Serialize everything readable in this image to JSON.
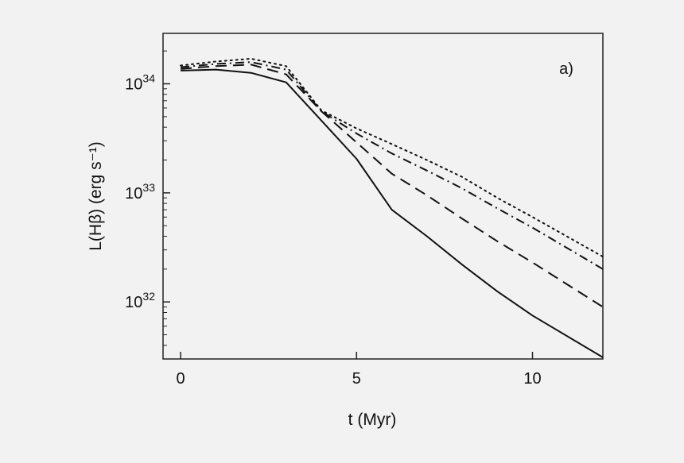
{
  "chart_data": {
    "type": "line",
    "panel_label": "a)",
    "xlabel": "t (Myr)",
    "ylabel": "L(Hβ) (erg s⁻¹)",
    "xlim": [
      -0.5,
      12
    ],
    "ylim": [
      3e+31,
      2.9e+34
    ],
    "y_scale": "log",
    "x_ticks": [
      0,
      5,
      10
    ],
    "x_tick_labels": [
      "0",
      "5",
      "10"
    ],
    "y_ticks": [
      1e+32,
      1e+33,
      1e+34
    ],
    "y_tick_labels": [
      {
        "base": "10",
        "exp": "32"
      },
      {
        "base": "10",
        "exp": "33"
      },
      {
        "base": "10",
        "exp": "34"
      }
    ],
    "grid": false,
    "series": [
      {
        "style": "solid",
        "x": [
          0,
          1,
          2,
          3,
          4,
          5,
          6,
          7,
          8,
          9,
          10,
          12
        ],
        "y": [
          1.32e+34,
          1.35e+34,
          1.26e+34,
          1.03e+34,
          4.6e+33,
          2.05e+33,
          7e+32,
          4e+32,
          2.2e+32,
          1.25e+32,
          7.5e+31,
          3.1e+31
        ]
      },
      {
        "style": "dashed",
        "x": [
          0,
          1,
          2,
          3,
          4,
          5,
          6,
          7,
          8,
          9,
          10,
          12
        ],
        "y": [
          1.37e+34,
          1.45e+34,
          1.5e+34,
          1.22e+34,
          5.6e+33,
          2.9e+33,
          1.5e+33,
          9.5e+32,
          5.8e+32,
          3.6e+32,
          2.3e+32,
          9e+31
        ]
      },
      {
        "style": "dashdot",
        "x": [
          0,
          1,
          2,
          3,
          4,
          5,
          6,
          7,
          8,
          9,
          10,
          12
        ],
        "y": [
          1.42e+34,
          1.52e+34,
          1.58e+34,
          1.35e+34,
          5.6e+33,
          3.5e+33,
          2.3e+33,
          1.6e+33,
          1.1e+33,
          7.2e+32,
          4.8e+32,
          2e+32
        ]
      },
      {
        "style": "dotted",
        "x": [
          0,
          1,
          2,
          3,
          4,
          5,
          6,
          7,
          8,
          9,
          10,
          12
        ],
        "y": [
          1.47e+34,
          1.6e+34,
          1.7e+34,
          1.45e+34,
          5.7e+33,
          3.9e+33,
          2.8e+33,
          2e+33,
          1.4e+33,
          9e+32,
          6e+32,
          2.6e+32
        ]
      }
    ]
  }
}
